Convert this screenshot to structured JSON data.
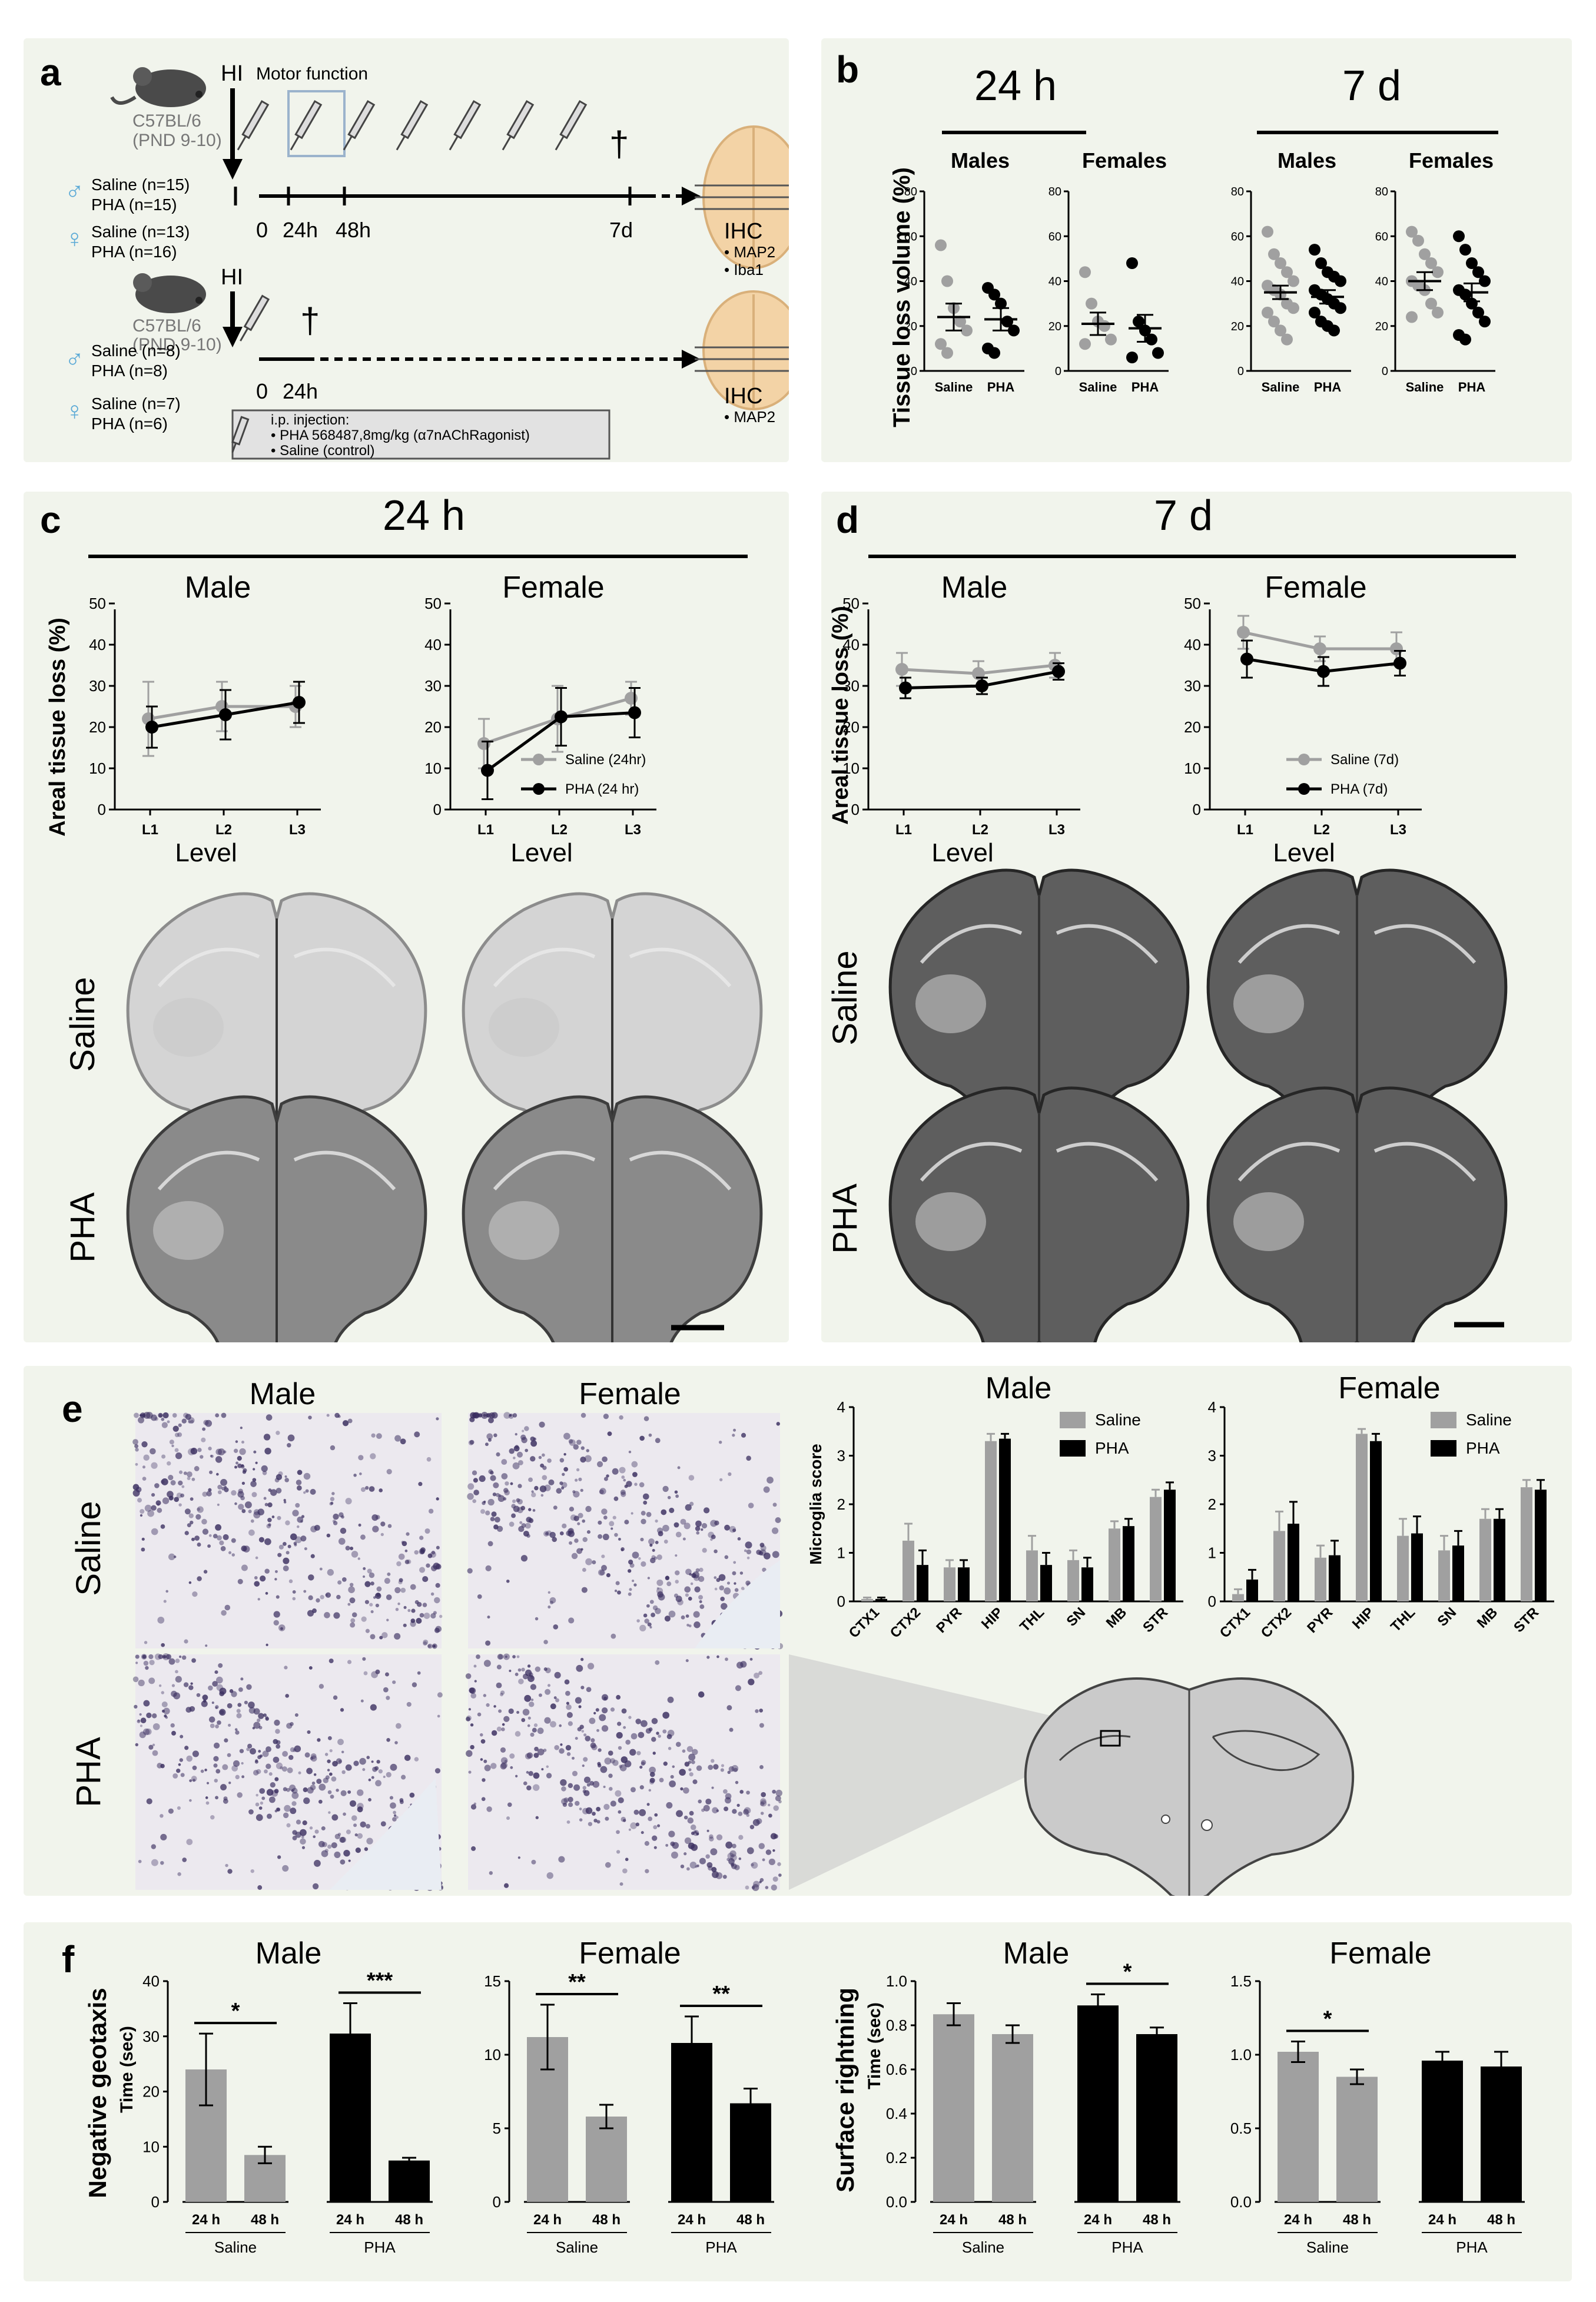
{
  "colors": {
    "saline": "#a0a0a0",
    "pha": "#000000",
    "panel_bg": "#f1f4ec"
  },
  "panel_a": {
    "label": "a",
    "strain_top": "C57BL/6",
    "age_top": "(PND 9-10)",
    "hi": "HI",
    "motor": "Motor function",
    "male_top": "Saline (n=15)\nPHA (n=15)",
    "female_top": "Saline (n=13)\nPHA (n=16)",
    "timeline_top": [
      "0",
      "24h",
      "48h",
      "7d"
    ],
    "ihc_top": "IHC",
    "markers_top": [
      "• MAP2",
      "• Iba1"
    ],
    "strain_bot": "C57BL/6",
    "age_bot": "(PND 9-10)",
    "hi_bot": "HI",
    "male_bot": "Saline (n=8)\nPHA (n=8)",
    "female_bot": "Saline (n=7)\nPHA (n=6)",
    "timeline_bot": [
      "0",
      "24h"
    ],
    "ihc_bot": "IHC",
    "markers_bot": [
      "• MAP2"
    ],
    "injection_title": "i.p. injection:",
    "injection_items": [
      "• PHA 568487,8mg/kg (α7nAChRagonist)",
      "• Saline (control)"
    ],
    "dagger": "†"
  },
  "panel_b": {
    "label": "b",
    "time_24": "24 h",
    "time_7": "7 d",
    "ylabel": "Tissue loss volume (%)",
    "chart_data": [
      {
        "type": "scatter",
        "title": "Males",
        "group": "24 h",
        "categories": [
          "Saline",
          "PHA"
        ],
        "ylim": [
          0,
          80
        ],
        "yticks": [
          0,
          20,
          40,
          60,
          80
        ],
        "points": {
          "Saline": [
            56,
            40,
            28,
            22,
            18,
            12,
            8
          ],
          "PHA": [
            37,
            34,
            30,
            22,
            18,
            10,
            8
          ]
        },
        "mean": [
          24,
          23
        ],
        "sem": [
          6,
          5
        ]
      },
      {
        "type": "scatter",
        "title": "Females",
        "group": "24 h",
        "categories": [
          "Saline",
          "PHA"
        ],
        "ylim": [
          0,
          80
        ],
        "yticks": [
          0,
          20,
          40,
          60,
          80
        ],
        "points": {
          "Saline": [
            44,
            30,
            22,
            20,
            14,
            12
          ],
          "PHA": [
            48,
            22,
            18,
            14,
            8,
            6
          ]
        },
        "mean": [
          21,
          19
        ],
        "sem": [
          5,
          6
        ]
      },
      {
        "type": "scatter",
        "title": "Males",
        "group": "7 d",
        "categories": [
          "Saline",
          "PHA"
        ],
        "ylim": [
          0,
          80
        ],
        "yticks": [
          0,
          20,
          40,
          60,
          80
        ],
        "points": {
          "Saline": [
            62,
            52,
            48,
            44,
            40,
            38,
            36,
            34,
            30,
            28,
            26,
            22,
            18,
            14
          ],
          "PHA": [
            54,
            48,
            44,
            42,
            40,
            36,
            34,
            32,
            30,
            28,
            26,
            22,
            20,
            18
          ]
        },
        "mean": [
          35,
          33
        ],
        "sem": [
          3,
          3
        ]
      },
      {
        "type": "scatter",
        "title": "Females",
        "group": "7 d",
        "categories": [
          "Saline",
          "PHA"
        ],
        "ylim": [
          0,
          80
        ],
        "yticks": [
          0,
          20,
          40,
          60,
          80
        ],
        "points": {
          "Saline": [
            62,
            58,
            52,
            48,
            44,
            40,
            38,
            36,
            30,
            26,
            24
          ],
          "PHA": [
            60,
            54,
            48,
            44,
            40,
            36,
            34,
            30,
            26,
            22,
            16,
            14
          ]
        },
        "mean": [
          40,
          35
        ],
        "sem": [
          4,
          4
        ]
      }
    ]
  },
  "panel_c": {
    "label": "c",
    "header": "24 h",
    "ylabel": "Areal tissue loss (%)",
    "xlabel": "Level",
    "row_saline": "Saline",
    "row_pha": "PHA",
    "chart_data": [
      {
        "type": "line",
        "title": "Male",
        "categories": [
          "L1",
          "L2",
          "L3"
        ],
        "ylim": [
          0,
          50
        ],
        "yticks": [
          0,
          10,
          20,
          30,
          40,
          50
        ],
        "series": [
          {
            "name": "Saline",
            "values": [
              22,
              25,
              25
            ],
            "err": [
              9,
              6,
              5
            ]
          },
          {
            "name": "PHA",
            "values": [
              20,
              23,
              26
            ],
            "err": [
              5,
              6,
              5
            ]
          }
        ]
      },
      {
        "type": "line",
        "title": "Female",
        "categories": [
          "L1",
          "L2",
          "L3"
        ],
        "ylim": [
          0,
          50
        ],
        "yticks": [
          0,
          10,
          20,
          30,
          40,
          50
        ],
        "series": [
          {
            "name": "Saline (24hr)",
            "values": [
              16,
              22,
              27
            ],
            "err": [
              6,
              8,
              4
            ]
          },
          {
            "name": "PHA (24 hr)",
            "values": [
              9.5,
              22.5,
              23.5
            ],
            "err": [
              7,
              7,
              6
            ]
          }
        ]
      }
    ]
  },
  "panel_d": {
    "label": "d",
    "header": "7 d",
    "ylabel": "Areal tissue loss (%)",
    "xlabel": "Level",
    "row_saline": "Saline",
    "row_pha": "PHA",
    "chart_data": [
      {
        "type": "line",
        "title": "Male",
        "categories": [
          "L1",
          "L2",
          "L3"
        ],
        "ylim": [
          0,
          50
        ],
        "yticks": [
          0,
          10,
          20,
          30,
          40,
          50
        ],
        "series": [
          {
            "name": "Saline",
            "values": [
              34,
              33,
              35
            ],
            "err": [
              4,
              3,
              3
            ]
          },
          {
            "name": "PHA",
            "values": [
              29.5,
              30,
              33.5
            ],
            "err": [
              2.5,
              2,
              2
            ]
          }
        ]
      },
      {
        "type": "line",
        "title": "Female",
        "categories": [
          "L1",
          "L2",
          "L3"
        ],
        "ylim": [
          0,
          50
        ],
        "yticks": [
          0,
          10,
          20,
          30,
          40,
          50
        ],
        "series": [
          {
            "name": "Saline (7d)",
            "values": [
              43,
              39,
              39
            ],
            "err": [
              4,
              3,
              4
            ]
          },
          {
            "name": "PHA (7d)",
            "values": [
              36.5,
              33.5,
              35.5
            ],
            "err": [
              4.5,
              3.5,
              3
            ]
          }
        ]
      }
    ]
  },
  "panel_e": {
    "label": "e",
    "col_male": "Male",
    "col_female": "Female",
    "row_saline": "Saline",
    "row_pha": "PHA",
    "ylabel": "Microglia score",
    "chart_data": [
      {
        "type": "bar",
        "title": "Male",
        "categories": [
          "CTX1",
          "CTX2",
          "PYR",
          "HIP",
          "THL",
          "SN",
          "MB",
          "STR"
        ],
        "ylim": [
          0,
          4
        ],
        "yticks": [
          0,
          1,
          2,
          3,
          4
        ],
        "series": [
          {
            "name": "Saline",
            "values": [
              0.05,
              1.25,
              0.7,
              3.3,
              1.05,
              0.85,
              1.5,
              2.15
            ],
            "err": [
              0.03,
              0.35,
              0.15,
              0.15,
              0.3,
              0.2,
              0.15,
              0.15
            ]
          },
          {
            "name": "PHA",
            "values": [
              0.05,
              0.75,
              0.7,
              3.35,
              0.75,
              0.7,
              1.55,
              2.3
            ],
            "err": [
              0.03,
              0.3,
              0.15,
              0.1,
              0.25,
              0.2,
              0.15,
              0.15
            ]
          }
        ]
      },
      {
        "type": "bar",
        "title": "Female",
        "categories": [
          "CTX1",
          "CTX2",
          "PYR",
          "HIP",
          "THL",
          "SN",
          "MB",
          "STR"
        ],
        "ylim": [
          0,
          4
        ],
        "yticks": [
          0,
          1,
          2,
          3,
          4
        ],
        "series": [
          {
            "name": "Saline",
            "values": [
              0.15,
              1.45,
              0.9,
              3.45,
              1.35,
              1.05,
              1.7,
              2.35
            ],
            "err": [
              0.1,
              0.4,
              0.25,
              0.1,
              0.35,
              0.3,
              0.2,
              0.15
            ]
          },
          {
            "name": "PHA",
            "values": [
              0.45,
              1.6,
              0.95,
              3.3,
              1.4,
              1.15,
              1.7,
              2.3
            ],
            "err": [
              0.2,
              0.45,
              0.3,
              0.15,
              0.35,
              0.3,
              0.2,
              0.2
            ]
          }
        ]
      }
    ]
  },
  "panel_f": {
    "label": "f",
    "ylabel_time": "Time (sec)",
    "ylabel_neg": "Negative geotaxis",
    "ylabel_surf": "Surface rightning",
    "chart_data": [
      {
        "type": "bar",
        "title": "Male",
        "measure": "Negative geotaxis",
        "ylim": [
          0,
          40
        ],
        "yticks": [
          0,
          10,
          20,
          30,
          40
        ],
        "groups": [
          {
            "name": "Saline",
            "categories": [
              "24 h",
              "48 h"
            ],
            "values": [
              24,
              8.5
            ],
            "err": [
              6.5,
              1.5
            ],
            "color": "saline",
            "sig": "*"
          },
          {
            "name": "PHA",
            "categories": [
              "24 h",
              "48 h"
            ],
            "values": [
              30.5,
              7.5
            ],
            "err": [
              5.5,
              0.5
            ],
            "color": "pha",
            "sig": "***"
          }
        ]
      },
      {
        "type": "bar",
        "title": "Female",
        "measure": "Negative geotaxis",
        "ylim": [
          0,
          15
        ],
        "yticks": [
          0,
          5,
          10,
          15
        ],
        "groups": [
          {
            "name": "Saline",
            "categories": [
              "24 h",
              "48 h"
            ],
            "values": [
              11.2,
              5.8
            ],
            "err": [
              2.2,
              0.8
            ],
            "color": "saline",
            "sig": "**"
          },
          {
            "name": "PHA",
            "categories": [
              "24 h",
              "48 h"
            ],
            "values": [
              10.8,
              6.7
            ],
            "err": [
              1.8,
              1.0
            ],
            "color": "pha",
            "sig": "**"
          }
        ]
      },
      {
        "type": "bar",
        "title": "Male",
        "measure": "Surface rightning",
        "ylim": [
          0,
          1.0
        ],
        "yticks": [
          0,
          0.2,
          0.4,
          0.6,
          0.8,
          1.0
        ],
        "groups": [
          {
            "name": "Saline",
            "categories": [
              "24 h",
              "48 h"
            ],
            "values": [
              0.85,
              0.76
            ],
            "err": [
              0.05,
              0.04
            ],
            "color": "saline",
            "sig": ""
          },
          {
            "name": "PHA",
            "categories": [
              "24 h",
              "48 h"
            ],
            "values": [
              0.89,
              0.76
            ],
            "err": [
              0.05,
              0.03
            ],
            "color": "pha",
            "sig": "*"
          }
        ]
      },
      {
        "type": "bar",
        "title": "Female",
        "measure": "Surface rightning",
        "ylim": [
          0,
          1.5
        ],
        "yticks": [
          0,
          0.5,
          1.0,
          1.5
        ],
        "groups": [
          {
            "name": "Saline",
            "categories": [
              "24 h",
              "48 h"
            ],
            "values": [
              1.02,
              0.85
            ],
            "err": [
              0.07,
              0.05
            ],
            "color": "saline",
            "sig": "*"
          },
          {
            "name": "PHA",
            "categories": [
              "24 h",
              "48 h"
            ],
            "values": [
              0.96,
              0.92
            ],
            "err": [
              0.06,
              0.1
            ],
            "color": "pha",
            "sig": ""
          }
        ]
      }
    ]
  }
}
